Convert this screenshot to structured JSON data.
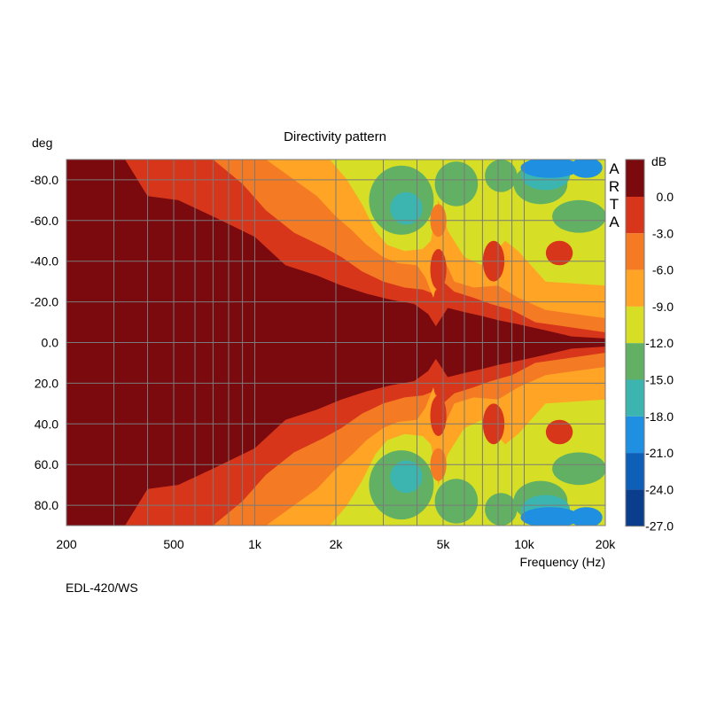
{
  "chart_data": {
    "type": "heatmap",
    "title": "Directivity pattern",
    "xlabel": "Frequency (Hz)",
    "ylabel": "deg",
    "colorbar_label": "dB",
    "watermark": "ARTA",
    "footer": "EDL-420/WS",
    "x_scale": "log",
    "xlim": [
      200,
      20000
    ],
    "ylim": [
      -90,
      90
    ],
    "y_inverted": true,
    "grid": true,
    "x_ticks": [
      {
        "value": 200,
        "label": "200"
      },
      {
        "value": 500,
        "label": "500"
      },
      {
        "value": 1000,
        "label": "1k"
      },
      {
        "value": 2000,
        "label": "2k"
      },
      {
        "value": 5000,
        "label": "5k"
      },
      {
        "value": 10000,
        "label": "10k"
      },
      {
        "value": 20000,
        "label": "20k"
      }
    ],
    "x_gridlines": [
      200,
      300,
      400,
      500,
      600,
      700,
      800,
      900,
      1000,
      2000,
      3000,
      4000,
      5000,
      6000,
      7000,
      8000,
      9000,
      10000,
      20000
    ],
    "y_ticks": [
      {
        "value": -80,
        "label": "-80.0"
      },
      {
        "value": -60,
        "label": "-60.0"
      },
      {
        "value": -40,
        "label": "-40.0"
      },
      {
        "value": -20,
        "label": "-20.0"
      },
      {
        "value": 0,
        "label": "0.0"
      },
      {
        "value": 20,
        "label": "20.0"
      },
      {
        "value": 40,
        "label": "40.0"
      },
      {
        "value": 60,
        "label": "60.0"
      },
      {
        "value": 80,
        "label": "80.0"
      }
    ],
    "colorbar": [
      {
        "label": "0.0",
        "color": "#7a0a0e"
      },
      {
        "label": "-3.0",
        "color": "#d8361b"
      },
      {
        "label": "-6.0",
        "color": "#f47a24"
      },
      {
        "label": "-9.0",
        "color": "#ffa424"
      },
      {
        "label": "-12.0",
        "color": "#d6de26"
      },
      {
        "label": "-15.0",
        "color": "#62b063"
      },
      {
        "label": "-18.0",
        "color": "#3cb4b0"
      },
      {
        "label": "-21.0",
        "color": "#1f8fe2"
      },
      {
        "label": "-24.0",
        "color": "#0e5fb8"
      },
      {
        "label": "-27.0",
        "color": "#0a3e8c"
      }
    ],
    "top_color": "#7a0a0e",
    "colors": {
      "c0": "#7a0a0e",
      "c3": "#d8361b",
      "c6": "#f47a24",
      "c9": "#ffa424",
      "c12": "#d6de26",
      "c15": "#62b063",
      "c18": "#3cb4b0",
      "c21": "#1f8fe2",
      "grid": "#7a7a7a"
    },
    "contours": [
      {
        "level": "c3",
        "color": "#d8361b",
        "points": [
          [
            330,
            90
          ],
          [
            400,
            72
          ],
          [
            520,
            70
          ],
          [
            700,
            62
          ],
          [
            1000,
            52
          ],
          [
            1300,
            38
          ],
          [
            1700,
            33
          ],
          [
            2100,
            28
          ],
          [
            2600,
            24
          ],
          [
            3200,
            21
          ],
          [
            3900,
            19
          ],
          [
            4400,
            14
          ],
          [
            4700,
            8
          ],
          [
            5200,
            17
          ],
          [
            6000,
            15
          ],
          [
            7000,
            13
          ],
          [
            8000,
            11
          ],
          [
            9500,
            9
          ],
          [
            12000,
            6
          ],
          [
            15000,
            3
          ],
          [
            20000,
            2
          ]
        ]
      },
      {
        "level": "c6",
        "color": "#f47a24",
        "points": [
          [
            700,
            90
          ],
          [
            900,
            78
          ],
          [
            1100,
            65
          ],
          [
            1400,
            54
          ],
          [
            1800,
            47
          ],
          [
            2100,
            42
          ],
          [
            2500,
            35
          ],
          [
            3000,
            30
          ],
          [
            3600,
            27
          ],
          [
            4200,
            26
          ],
          [
            4600,
            24
          ],
          [
            5000,
            30
          ],
          [
            5500,
            25
          ],
          [
            6500,
            22
          ],
          [
            7500,
            19
          ],
          [
            9000,
            16
          ],
          [
            11000,
            10
          ],
          [
            14000,
            8
          ],
          [
            20000,
            5
          ]
        ]
      },
      {
        "level": "c9",
        "color": "#ffa424",
        "points": [
          [
            1100,
            90
          ],
          [
            1400,
            80
          ],
          [
            1700,
            72
          ],
          [
            2000,
            62
          ],
          [
            2300,
            55
          ],
          [
            2600,
            48
          ],
          [
            3000,
            42
          ],
          [
            3400,
            39
          ],
          [
            4000,
            38
          ],
          [
            4300,
            32
          ],
          [
            4600,
            22
          ],
          [
            5000,
            42
          ],
          [
            5500,
            30
          ],
          [
            6500,
            27
          ],
          [
            8000,
            28
          ],
          [
            9500,
            22
          ],
          [
            12000,
            16
          ],
          [
            20000,
            12
          ]
        ]
      },
      {
        "level": "c12",
        "color": "#d6de26",
        "points": [
          [
            1900,
            90
          ],
          [
            2200,
            80
          ],
          [
            2500,
            68
          ],
          [
            2800,
            55
          ],
          [
            3100,
            48
          ],
          [
            3600,
            45
          ],
          [
            4200,
            46
          ],
          [
            4500,
            50
          ],
          [
            4800,
            70
          ],
          [
            5200,
            55
          ],
          [
            6000,
            42
          ],
          [
            7000,
            38
          ],
          [
            8500,
            50
          ],
          [
            9500,
            45
          ],
          [
            12000,
            30
          ],
          [
            20000,
            28
          ]
        ]
      }
    ],
    "blobs": [
      {
        "color": "#62b063",
        "f": 3500,
        "a": 70,
        "rf": 0.12,
        "ra": 17
      },
      {
        "color": "#62b063",
        "f": 5600,
        "a": 78,
        "rf": 0.08,
        "ra": 11
      },
      {
        "color": "#62b063",
        "f": 8200,
        "a": 82,
        "rf": 0.06,
        "ra": 8
      },
      {
        "color": "#62b063",
        "f": 11500,
        "a": 78,
        "rf": 0.1,
        "ra": 10
      },
      {
        "color": "#62b063",
        "f": 16000,
        "a": 62,
        "rf": 0.1,
        "ra": 8
      },
      {
        "color": "#3cb4b0",
        "f": 3650,
        "a": 66,
        "rf": 0.06,
        "ra": 8
      },
      {
        "color": "#3cb4b0",
        "f": 12000,
        "a": 82,
        "rf": 0.09,
        "ra": 7
      },
      {
        "color": "#1f8fe2",
        "f": 12500,
        "a": 86,
        "rf": 0.11,
        "ra": 5
      },
      {
        "color": "#1f8fe2",
        "f": 17000,
        "a": 86,
        "rf": 0.06,
        "ra": 5
      },
      {
        "color": "#d8361b",
        "f": 4800,
        "a": 36,
        "rf": 0.03,
        "ra": 10
      },
      {
        "color": "#f47a24",
        "f": 4800,
        "a": 60,
        "rf": 0.03,
        "ra": 8
      },
      {
        "color": "#d8361b",
        "f": 7700,
        "a": 40,
        "rf": 0.04,
        "ra": 10
      },
      {
        "color": "#d8361b",
        "f": 13500,
        "a": 44,
        "rf": 0.05,
        "ra": 6
      }
    ]
  }
}
